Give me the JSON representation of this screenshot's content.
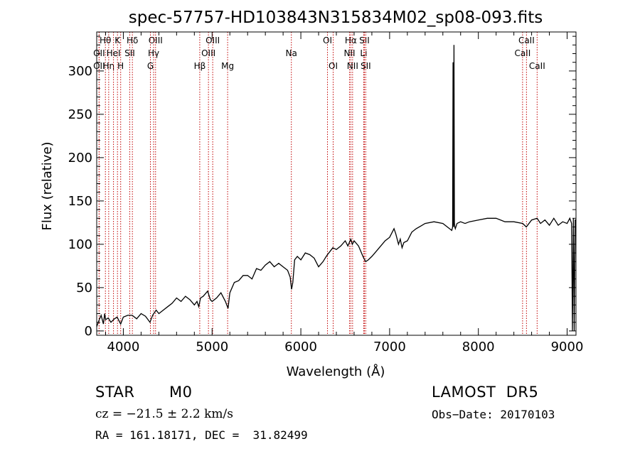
{
  "chart_data": {
    "type": "line",
    "title": "spec-57757-HD103843N315834M02_sp08-093.fits",
    "xlabel": "Wavelength (Å)",
    "ylabel": "Flux (relative)",
    "xlim": [
      3700,
      9100
    ],
    "ylim": [
      -5,
      345
    ],
    "xticks": [
      4000,
      5000,
      6000,
      7000,
      8000,
      9000
    ],
    "yticks": [
      0,
      50,
      100,
      150,
      200,
      250,
      300
    ],
    "grid": false,
    "line_color": "#000000",
    "marker_color": "#c00000",
    "series": [
      {
        "x": [
          3700,
          3725,
          3750,
          3775,
          3790,
          3800,
          3830,
          3860,
          3900,
          3930,
          3970,
          4000,
          4050,
          4100,
          4150,
          4200,
          4250,
          4300,
          4330,
          4370,
          4400,
          4450,
          4500,
          4550,
          4600,
          4650,
          4700,
          4750,
          4800,
          4830,
          4850,
          4870,
          4900,
          4950,
          4980,
          5000,
          5050,
          5100,
          5150,
          5180,
          5200,
          5250,
          5300,
          5350,
          5400,
          5450,
          5500,
          5550,
          5600,
          5650,
          5700,
          5750,
          5800,
          5850,
          5880,
          5895,
          5910,
          5930,
          5960,
          6000,
          6050,
          6100,
          6150,
          6200,
          6250,
          6280,
          6300,
          6330,
          6360,
          6400,
          6450,
          6500,
          6530,
          6563,
          6580,
          6600,
          6650,
          6700,
          6730,
          6760,
          6800,
          6850,
          6900,
          6950,
          7000,
          7050,
          7070,
          7100,
          7120,
          7140,
          7160,
          7200,
          7250,
          7300,
          7350,
          7400,
          7500,
          7600,
          7700,
          7710,
          7715,
          7720,
          7725,
          7730,
          7735,
          7740,
          7760,
          7800,
          7850,
          7900,
          8000,
          8100,
          8200,
          8300,
          8400,
          8500,
          8540,
          8600,
          8662,
          8700,
          8750,
          8800,
          8850,
          8900,
          8950,
          9000,
          9030,
          9050,
          9060,
          9070,
          9080,
          9090,
          9100
        ],
        "values": [
          5,
          12,
          18,
          8,
          20,
          13,
          15,
          10,
          14,
          16,
          8,
          16,
          18,
          18,
          14,
          20,
          17,
          10,
          18,
          24,
          20,
          24,
          28,
          32,
          38,
          34,
          40,
          36,
          30,
          34,
          28,
          38,
          40,
          46,
          36,
          34,
          38,
          44,
          34,
          26,
          44,
          56,
          58,
          64,
          64,
          60,
          72,
          70,
          76,
          80,
          74,
          78,
          74,
          70,
          62,
          48,
          56,
          82,
          86,
          82,
          90,
          88,
          84,
          74,
          80,
          85,
          88,
          92,
          96,
          94,
          98,
          104,
          98,
          106,
          100,
          104,
          98,
          86,
          80,
          82,
          86,
          92,
          98,
          104,
          108,
          118,
          112,
          100,
          106,
          96,
          102,
          104,
          114,
          118,
          121,
          124,
          126,
          124,
          116,
          120,
          310,
          120,
          330,
          125,
          120,
          118,
          124,
          126,
          124,
          126,
          128,
          130,
          130,
          126,
          126,
          124,
          120,
          128,
          130,
          124,
          128,
          122,
          130,
          122,
          126,
          124,
          130,
          124,
          0,
          130,
          0,
          128,
          128
        ],
        "name": ""
      }
    ],
    "markers": [
      {
        "label": "Hθ",
        "x": 3798,
        "row": 0
      },
      {
        "label": "OII",
        "x": 3727,
        "row": 1
      },
      {
        "label": "OII",
        "x": 3727,
        "row": 2
      },
      {
        "label": "Hη",
        "x": 3835,
        "row": 2
      },
      {
        "label": "HeI",
        "x": 3889,
        "row": 1
      },
      {
        "label": "K",
        "x": 3934,
        "row": 0
      },
      {
        "label": "H",
        "x": 3970,
        "row": 2
      },
      {
        "label": "SII",
        "x": 4072,
        "row": 1
      },
      {
        "label": "Hδ",
        "x": 4102,
        "row": 0
      },
      {
        "label": "OIII",
        "x": 4363,
        "row": 0
      },
      {
        "label": "Hγ",
        "x": 4341,
        "row": 1
      },
      {
        "label": "G",
        "x": 4305,
        "row": 2
      },
      {
        "label": "Hβ",
        "x": 4861,
        "row": 2
      },
      {
        "label": "OIII",
        "x": 4959,
        "row": 1
      },
      {
        "label": "OIII",
        "x": 5007,
        "row": 0
      },
      {
        "label": "Mg",
        "x": 5175,
        "row": 2
      },
      {
        "label": "Na",
        "x": 5893,
        "row": 1
      },
      {
        "label": "OI",
        "x": 6300,
        "row": 0
      },
      {
        "label": "OI",
        "x": 6364,
        "row": 2
      },
      {
        "label": "Hα",
        "x": 6563,
        "row": 0
      },
      {
        "label": "NII",
        "x": 6548,
        "row": 1
      },
      {
        "label": "NII",
        "x": 6583,
        "row": 2
      },
      {
        "label": "SII",
        "x": 6716,
        "row": 0
      },
      {
        "label": "Li",
        "x": 6708,
        "row": 1
      },
      {
        "label": "SII",
        "x": 6731,
        "row": 2
      },
      {
        "label": "CaII",
        "x": 8498,
        "row": 1
      },
      {
        "label": "CaII",
        "x": 8542,
        "row": 0
      },
      {
        "label": "CaII",
        "x": 8662,
        "row": 2
      }
    ]
  },
  "info": {
    "object_type": "STAR",
    "subclass": "M0",
    "survey": "LAMOST  DR5",
    "cz": "cz = −21.5 ± 2.2 km/s",
    "obs_date": "Obs−Date: 20170103",
    "coords": "RA = 161.18171, DEC =  31.82499"
  }
}
